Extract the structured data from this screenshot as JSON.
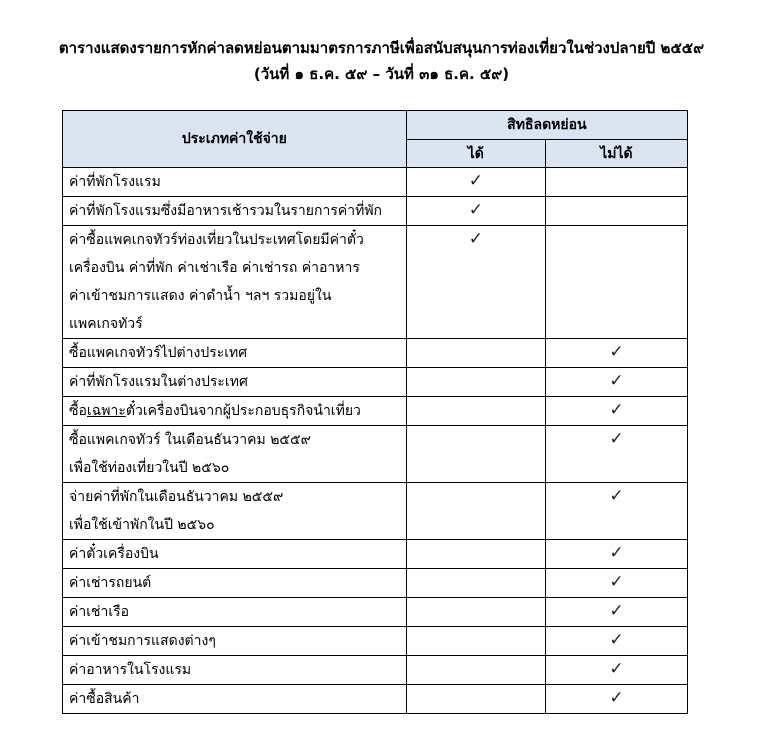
{
  "title": "ตารางแสดงรายการหักค่าลดหย่อนตามมาตรการภาษีเพื่อสนับสนุนการท่องเที่ยวในช่วงปลายปี ๒๕๕๙",
  "subtitle": "(วันที่ ๑ ธ.ค. ๕๙ – วันที่ ๓๑ ธ.ค. ๕๙)",
  "header": {
    "col1": "ประเภทค่าใช้จ่าย",
    "group": "สิทธิลดหย่อน",
    "yes": "ได้",
    "no": "ไม่ได้"
  },
  "check_glyph": "✓",
  "rows": [
    {
      "lines": [
        "ค่าที่พักโรงแรม"
      ],
      "eligible": true
    },
    {
      "lines": [
        "ค่าที่พักโรงแรมซึ่งมีอาหารเช้ารวมในรายการค่าที่พัก"
      ],
      "eligible": true
    },
    {
      "lines": [
        "ค่าซื้อแพคเกจทัวร์ท่องเที่ยวในประเทศโดยมีค่าตั๋ว",
        "เครื่องบิน ค่าที่พัก ค่าเช่าเรือ ค่าเช่ารถ ค่าอาหาร",
        "ค่าเข้าชมการแสดง ค่าดำน้ำ ฯลฯ รวมอยู่ใน",
        "แพคเกจทัวร์"
      ],
      "eligible": true
    },
    {
      "lines": [
        "ซื้อแพคเกจทัวร์ไปต่างประเทศ"
      ],
      "eligible": false
    },
    {
      "lines": [
        "ค่าที่พักโรงแรมในต่างประเทศ"
      ],
      "eligible": false
    },
    {
      "prefix": "ซื้อ",
      "underlined": "เฉพาะ",
      "suffix": "ตั๋วเครื่องบินจากผู้ประกอบธุรกิจนำเที่ยว",
      "eligible": false
    },
    {
      "lines": [
        "ซื้อแพคเกจทัวร์ ในเดือนธันวาคม ๒๕๕๙",
        "เพื่อใช้ท่องเที่ยวในปี ๒๕๖๐"
      ],
      "eligible": false
    },
    {
      "lines": [
        "จ่ายค่าที่พักในเดือนธันวาคม ๒๕๕๙",
        "เพื่อใช้เข้าพักในปี ๒๕๖๐"
      ],
      "eligible": false
    },
    {
      "lines": [
        "ค่าตั๋วเครื่องบิน"
      ],
      "eligible": false
    },
    {
      "lines": [
        "ค่าเช่ารถยนต์"
      ],
      "eligible": false
    },
    {
      "lines": [
        "ค่าเช่าเรือ"
      ],
      "eligible": false
    },
    {
      "lines": [
        "ค่าเข้าชมการแสดงต่างๆ"
      ],
      "eligible": false
    },
    {
      "lines": [
        "ค่าอาหารในโรงแรม"
      ],
      "eligible": false
    },
    {
      "lines": [
        "ค่าซื้อสินค้า"
      ],
      "eligible": false
    }
  ]
}
